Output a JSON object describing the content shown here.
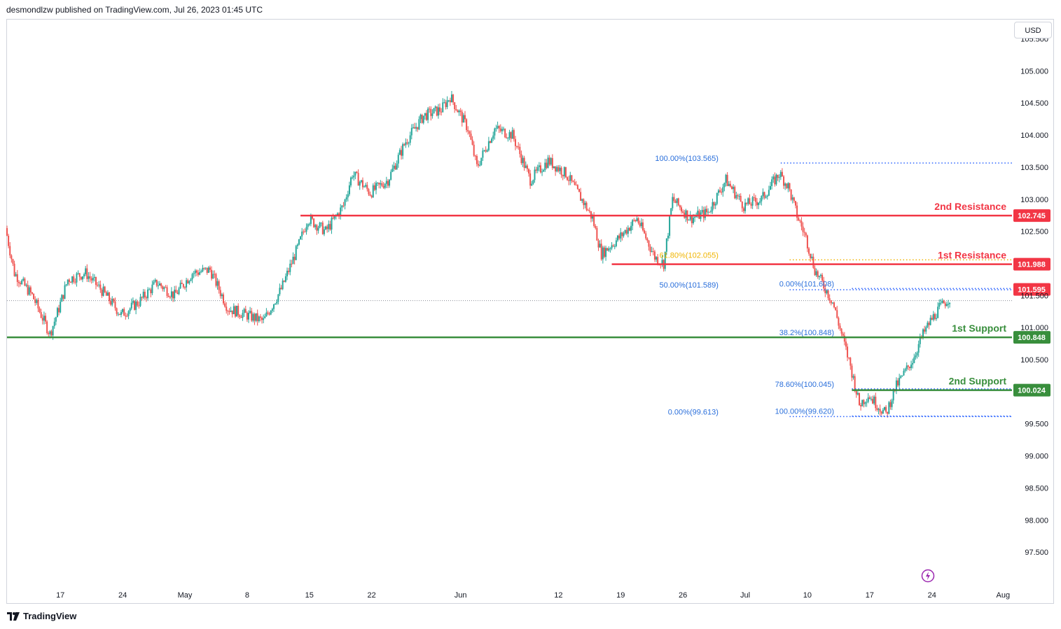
{
  "header": {
    "published_text": "desmondlzw published on TradingView.com, Jul 26, 2023 01:45 UTC"
  },
  "footer": {
    "brand": "TradingView",
    "logo_icon": "tradingview-logo-icon"
  },
  "price_axis": {
    "currency": "USD"
  },
  "colors": {
    "up": "#26a69a",
    "down": "#ef5350",
    "resistance": "#f23645",
    "support": "#388e3c",
    "fib": "#2962ff",
    "fib_label": "#2a6fdb",
    "fib_gold": "#f0b400",
    "text": "#131722",
    "grid_border": "#d1d4dc"
  },
  "chart_data": {
    "type": "candlestick",
    "symbol_note": "",
    "ylim": [
      97.0,
      105.8
    ],
    "y_ticks": [
      "105.500",
      "105.000",
      "104.500",
      "104.000",
      "103.500",
      "103.000",
      "102.500",
      "101.500",
      "101.000",
      "100.500",
      "99.500",
      "99.000",
      "98.500",
      "98.000",
      "97.500"
    ],
    "y_tick_values": [
      105.5,
      105.0,
      104.5,
      104.0,
      103.5,
      103.0,
      102.5,
      101.5,
      101.0,
      100.5,
      99.5,
      99.0,
      98.5,
      98.0,
      97.5
    ],
    "x_range": [
      "2023-04-11",
      "2023-08-02"
    ],
    "x_ticks": [
      {
        "label": "17",
        "date": "2023-04-17"
      },
      {
        "label": "24",
        "date": "2023-04-24"
      },
      {
        "label": "May",
        "date": "2023-05-01"
      },
      {
        "label": "8",
        "date": "2023-05-08"
      },
      {
        "label": "15",
        "date": "2023-05-15"
      },
      {
        "label": "22",
        "date": "2023-05-22"
      },
      {
        "label": "Jun",
        "date": "2023-06-01"
      },
      {
        "label": "12",
        "date": "2023-06-12"
      },
      {
        "label": "19",
        "date": "2023-06-19"
      },
      {
        "label": "26",
        "date": "2023-06-26"
      },
      {
        "label": "Jul",
        "date": "2023-07-03"
      },
      {
        "label": "10",
        "date": "2023-07-10"
      },
      {
        "label": "17",
        "date": "2023-07-17"
      },
      {
        "label": "24",
        "date": "2023-07-24"
      },
      {
        "label": "Aug",
        "date": "2023-08-01"
      }
    ],
    "price_path": [
      [
        "2023-04-11",
        102.55
      ],
      [
        "2023-04-12",
        101.85
      ],
      [
        "2023-04-14",
        101.5
      ],
      [
        "2023-04-16",
        100.9
      ],
      [
        "2023-04-17",
        101.3
      ],
      [
        "2023-04-18",
        101.75
      ],
      [
        "2023-04-20",
        101.85
      ],
      [
        "2023-04-22",
        101.55
      ],
      [
        "2023-04-24",
        101.2
      ],
      [
        "2023-04-26",
        101.4
      ],
      [
        "2023-04-28",
        101.7
      ],
      [
        "2023-04-30",
        101.5
      ],
      [
        "2023-05-02",
        101.85
      ],
      [
        "2023-05-04",
        101.9
      ],
      [
        "2023-05-06",
        101.3
      ],
      [
        "2023-05-08",
        101.2
      ],
      [
        "2023-05-10",
        101.1
      ],
      [
        "2023-05-12",
        101.6
      ],
      [
        "2023-05-14",
        102.3
      ],
      [
        "2023-05-15",
        102.7
      ],
      [
        "2023-05-17",
        102.5
      ],
      [
        "2023-05-19",
        102.9
      ],
      [
        "2023-05-20",
        103.4
      ],
      [
        "2023-05-22",
        103.1
      ],
      [
        "2023-05-24",
        103.3
      ],
      [
        "2023-05-26",
        103.9
      ],
      [
        "2023-05-28",
        104.3
      ],
      [
        "2023-05-30",
        104.4
      ],
      [
        "2023-05-31",
        104.6
      ],
      [
        "2023-06-02",
        104.1
      ],
      [
        "2023-06-03",
        103.5
      ],
      [
        "2023-06-05",
        104.1
      ],
      [
        "2023-06-07",
        104.0
      ],
      [
        "2023-06-09",
        103.3
      ],
      [
        "2023-06-11",
        103.6
      ],
      [
        "2023-06-13",
        103.4
      ],
      [
        "2023-06-15",
        102.95
      ],
      [
        "2023-06-16",
        102.7
      ],
      [
        "2023-06-17",
        102.15
      ],
      [
        "2023-06-19",
        102.4
      ],
      [
        "2023-06-21",
        102.7
      ],
      [
        "2023-06-23",
        102.1
      ],
      [
        "2023-06-24",
        102.0
      ],
      [
        "2023-06-25",
        103.0
      ],
      [
        "2023-06-27",
        102.7
      ],
      [
        "2023-06-29",
        102.8
      ],
      [
        "2023-07-01",
        103.3
      ],
      [
        "2023-07-03",
        102.9
      ],
      [
        "2023-07-05",
        103.0
      ],
      [
        "2023-07-07",
        103.4
      ],
      [
        "2023-07-08",
        103.2
      ],
      [
        "2023-07-09",
        102.75
      ],
      [
        "2023-07-10",
        102.4
      ],
      [
        "2023-07-11",
        101.9
      ],
      [
        "2023-07-13",
        101.4
      ],
      [
        "2023-07-14",
        100.9
      ],
      [
        "2023-07-15",
        100.4
      ],
      [
        "2023-07-16",
        99.8
      ],
      [
        "2023-07-17",
        99.95
      ],
      [
        "2023-07-19",
        99.65
      ],
      [
        "2023-07-20",
        100.05
      ],
      [
        "2023-07-22",
        100.5
      ],
      [
        "2023-07-23",
        100.85
      ],
      [
        "2023-07-24",
        101.1
      ],
      [
        "2023-07-25",
        101.3
      ],
      [
        "2023-07-26",
        101.45
      ]
    ],
    "horizontal_levels": [
      {
        "name": "2nd Resistance",
        "value": 102.745,
        "value_label": "102.745",
        "color": "resistance",
        "from": "2023-05-14"
      },
      {
        "name": "1st Resistance",
        "value": 101.988,
        "value_label": "101.988",
        "color": "resistance",
        "from": "2023-06-18"
      },
      {
        "name": "1st Support",
        "value": 100.848,
        "value_label": "100.848",
        "color": "support",
        "from": "2023-04-11"
      },
      {
        "name": "2nd Support",
        "value": 100.024,
        "value_label": "100.024",
        "color": "support",
        "from": "2023-07-15"
      }
    ],
    "current_price": {
      "value": 101.595,
      "value_label": "101.595"
    },
    "last_price_line": 101.42,
    "fibonacci_labels": [
      {
        "text": "100.00%(103.565)",
        "value": 103.565,
        "line_from": "2023-07-07",
        "label_at": "2023-06-30",
        "color": "fib_label"
      },
      {
        "text": "61.80%(102.055)",
        "value": 102.055,
        "line_from": "2023-07-08",
        "label_at": "2023-06-30",
        "color": "fib_gold"
      },
      {
        "text": "50.00%(101.589)",
        "value": 101.589,
        "line_from": "2023-07-08",
        "label_at": "2023-06-30",
        "color": "fib_label"
      },
      {
        "text": "0.00%(101.608)",
        "value": 101.608,
        "line_from": "2023-07-15",
        "label_at": "2023-07-13",
        "color": "fib_label"
      },
      {
        "text": "38.2%(100.848)",
        "value": 100.848,
        "line_from": "2023-07-18",
        "label_at": "2023-07-13",
        "color": "fib_label"
      },
      {
        "text": "78.60%(100.045)",
        "value": 100.045,
        "line_from": "2023-07-15",
        "label_at": "2023-07-13",
        "color": "fib_label"
      },
      {
        "text": "100.00%(99.620)",
        "value": 99.62,
        "line_from": "2023-07-15",
        "label_at": "2023-07-13",
        "color": "fib_label"
      },
      {
        "text": "0.00%(99.613)",
        "value": 99.613,
        "line_from": "2023-07-08",
        "label_at": "2023-06-30",
        "color": "fib_label"
      }
    ]
  }
}
